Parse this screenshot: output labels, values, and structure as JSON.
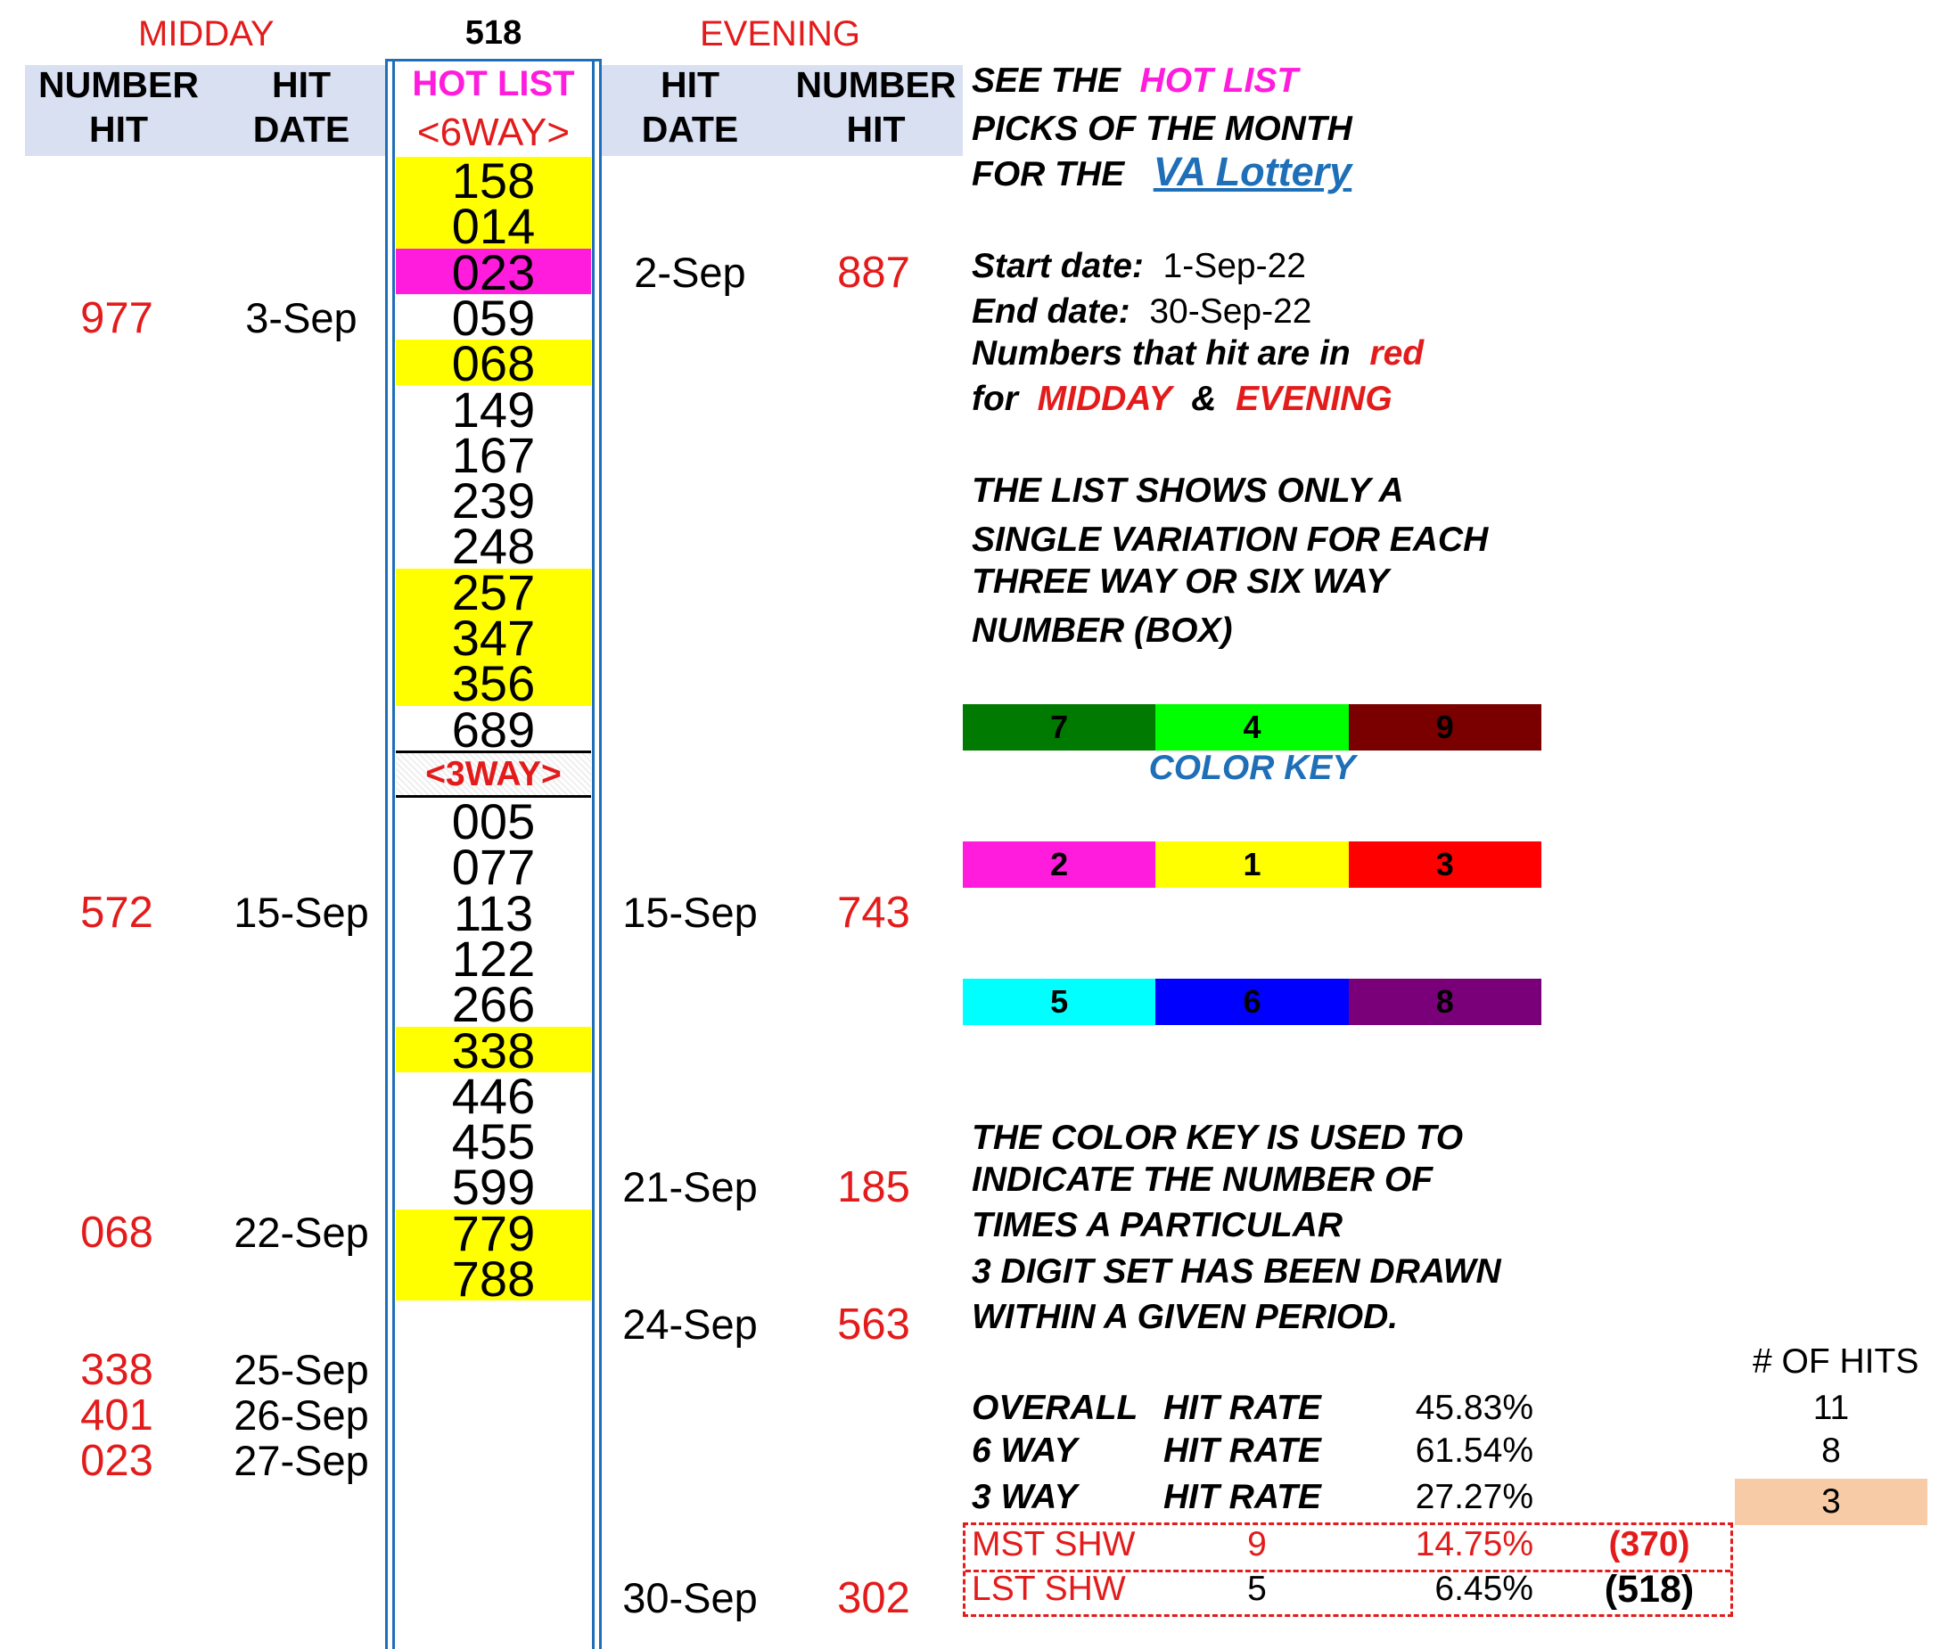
{
  "header": {
    "midday_label": "MIDDAY",
    "center_number": "518",
    "evening_label": "EVENING",
    "left_col1": [
      "NUMBER",
      "HIT"
    ],
    "left_col2": [
      "HIT",
      "DATE"
    ],
    "hot_list": "HOT LIST",
    "six_way": "<6WAY>",
    "right_col1": [
      "HIT",
      "DATE"
    ],
    "right_col2": [
      "NUMBER",
      "HIT"
    ]
  },
  "hot_list_six_way": [
    {
      "value": "158",
      "color": "#ffff00"
    },
    {
      "value": "014",
      "color": "#ffff00"
    },
    {
      "value": "023",
      "color": "#ff1cdc"
    },
    {
      "value": "059",
      "color": ""
    },
    {
      "value": "068",
      "color": "#ffff00"
    },
    {
      "value": "149",
      "color": ""
    },
    {
      "value": "167",
      "color": ""
    },
    {
      "value": "239",
      "color": ""
    },
    {
      "value": "248",
      "color": ""
    },
    {
      "value": "257",
      "color": "#ffff00"
    },
    {
      "value": "347",
      "color": "#ffff00"
    },
    {
      "value": "356",
      "color": "#ffff00"
    },
    {
      "value": "689",
      "color": ""
    }
  ],
  "three_way_label": "<3WAY>",
  "hot_list_three_way": [
    {
      "value": "005",
      "color": ""
    },
    {
      "value": "077",
      "color": ""
    },
    {
      "value": "113",
      "color": ""
    },
    {
      "value": "122",
      "color": ""
    },
    {
      "value": "266",
      "color": ""
    },
    {
      "value": "338",
      "color": "#ffff00"
    },
    {
      "value": "446",
      "color": ""
    },
    {
      "value": "455",
      "color": ""
    },
    {
      "value": "599",
      "color": ""
    },
    {
      "value": "779",
      "color": "#ffff00"
    },
    {
      "value": "788",
      "color": "#ffff00"
    }
  ],
  "midday_hits": [
    {
      "number": "977",
      "date": "3-Sep",
      "row": 3
    },
    {
      "number": "572",
      "date": "15-Sep",
      "row": 16
    },
    {
      "number": "068",
      "date": "22-Sep",
      "row": 23
    },
    {
      "number": "338",
      "date": "25-Sep",
      "row": 26
    },
    {
      "number": "401",
      "date": "26-Sep",
      "row": 27
    },
    {
      "number": "023",
      "date": "27-Sep",
      "row": 28
    }
  ],
  "evening_hits": [
    {
      "date": "2-Sep",
      "number": "887",
      "row": 2
    },
    {
      "date": "15-Sep",
      "number": "743",
      "row": 16
    },
    {
      "date": "21-Sep",
      "number": "185",
      "row": 22
    },
    {
      "date": "24-Sep",
      "number": "563",
      "row": 25
    },
    {
      "date": "30-Sep",
      "number": "302",
      "row": 31
    }
  ],
  "notes": {
    "see_the": "SEE THE",
    "hot_list": "HOT LIST",
    "picks_line": "PICKS OF THE MONTH",
    "for_the": "FOR THE",
    "lottery_name": "VA Lottery",
    "start_label": "Start date:",
    "start_value": "1-Sep-22",
    "end_label": "End date:",
    "end_value": "30-Sep-22",
    "numbers_hit_prefix": "Numbers that hit are in",
    "red_word": "red",
    "for_word": "for",
    "midday_word": "MIDDAY",
    "amp": "&",
    "evening_word": "EVENING",
    "list_lines": [
      "THE LIST SHOWS ONLY A",
      "SINGLE VARIATION FOR EACH",
      "THREE WAY OR SIX WAY",
      "NUMBER (BOX)"
    ],
    "key_lines": [
      "THE COLOR KEY IS USED TO",
      "INDICATE THE NUMBER OF",
      "TIMES A PARTICULAR",
      "3 DIGIT SET HAS BEEN DRAWN",
      "WITHIN A GIVEN PERIOD."
    ]
  },
  "color_key": {
    "title": "COLOR KEY",
    "rows": [
      [
        {
          "label": "7",
          "color": "#007a00"
        },
        {
          "label": "4",
          "color": "#00ff00"
        },
        {
          "label": "9",
          "color": "#7a0000"
        }
      ],
      [
        {
          "label": "2",
          "color": "#ff1cdc"
        },
        {
          "label": "1",
          "color": "#ffff00"
        },
        {
          "label": "3",
          "color": "#ff0000"
        }
      ],
      [
        {
          "label": "5",
          "color": "#00ffff"
        },
        {
          "label": "6",
          "color": "#0000ff"
        },
        {
          "label": "8",
          "color": "#7a007a"
        }
      ]
    ]
  },
  "stats": {
    "hits_header": "# OF HITS",
    "rows": [
      {
        "label": "OVERALL",
        "rate_label": "HIT RATE",
        "rate": "45.83%",
        "hits": "11"
      },
      {
        "label": "6 WAY",
        "rate_label": "HIT RATE",
        "rate": "61.54%",
        "hits": "8"
      },
      {
        "label": "3 WAY",
        "rate_label": "HIT RATE",
        "rate": "27.27%",
        "hits": "3"
      }
    ],
    "mst": {
      "label": "MST SHW",
      "count": "9",
      "rate": "14.75%",
      "number": "(370)"
    },
    "lst": {
      "label": "LST SHW",
      "count": "5",
      "rate": "6.45%",
      "number": "(518)"
    },
    "hits_highlight_color": "#f8cba7"
  }
}
